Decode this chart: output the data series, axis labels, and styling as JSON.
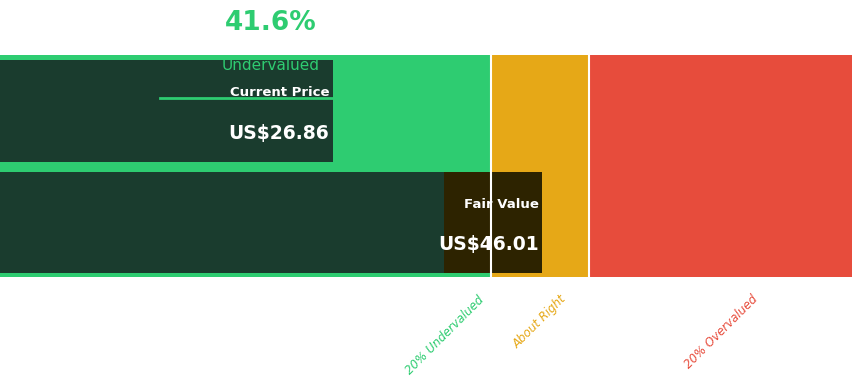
{
  "title_pct": "41.6%",
  "title_label": "Undervalued",
  "title_color": "#2ecc71",
  "current_price_label": "Current Price",
  "current_price_value": "US$26.86",
  "fair_value_label": "Fair Value",
  "fair_value_value": "US$46.01",
  "current_price": 26.86,
  "fair_value": 46.01,
  "total_max": 80.0,
  "bg_color": "#ffffff",
  "bar_bg_green_light": "#2ecc71",
  "bar_bg_yellow": "#e6a817",
  "bar_bg_red": "#e74c3c",
  "label_20pct_undervalued": "20% Undervalued",
  "label_about_right": "About Right",
  "label_20pct_overvalued": "20% Overvalued",
  "label_20pct_undervalued_color": "#2ecc71",
  "label_about_right_color": "#e6a817",
  "label_20pct_overvalued_color": "#e74c3c",
  "underline_color": "#2ecc71",
  "dark_box_color_current": "#1a3c2e",
  "dark_box_color_fair": "#2d2300"
}
